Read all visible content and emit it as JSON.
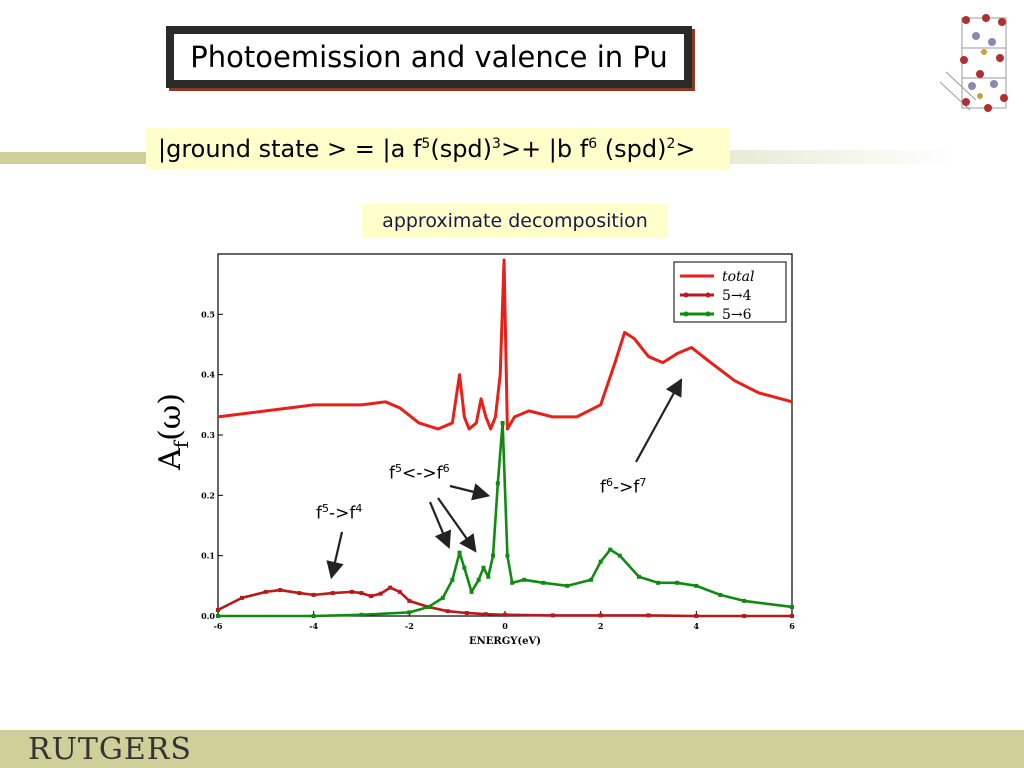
{
  "slide": {
    "title": "Photoemission and valence in Pu",
    "formula": {
      "p1": "|ground state > = |a f",
      "s1": "5",
      "p2": "(spd)",
      "s2": "3",
      "p3": ">+ |b f",
      "s3": "6",
      "p4": " (spd)",
      "s4": "2",
      "p5": ">"
    },
    "subtitle": "approximate decomposition",
    "yaxis_label": {
      "main": "A",
      "sub": "f",
      "rest": "(ω)"
    },
    "annotations": {
      "a1": {
        "base1": "f",
        "sup1": "5",
        "mid": "->f",
        "sup2": "4"
      },
      "a2": {
        "base1": "f",
        "sup1": "5",
        "mid": "<->f",
        "sup2": "6"
      },
      "a3": {
        "base1": "f",
        "sup1": "6",
        "mid": "->f",
        "sup2": "7"
      }
    },
    "logo": "RUTGERS",
    "colors": {
      "total": "#e8201a",
      "five_to_four": "#b81a1a",
      "five_to_six": "#118a11",
      "banner": "#ffffcc",
      "band": "#cfcf9a"
    }
  },
  "chart_data": {
    "type": "line",
    "xlabel": "ENERGY(eV)",
    "ylabel": "",
    "xlim": [
      -6,
      6
    ],
    "ylim": [
      0,
      0.6
    ],
    "xticks": [
      -6,
      -4,
      -2,
      0,
      2,
      4,
      6
    ],
    "yticks": [
      0.0,
      0.1,
      0.2,
      0.3,
      0.4,
      0.5
    ],
    "ytick_labels": [
      "0.0",
      "0.1",
      "0.2",
      "0.3",
      "0.4",
      "0.5"
    ],
    "legend_position": "top-right",
    "series": [
      {
        "name": "total",
        "color": "#e8201a",
        "marker": false,
        "x": [
          -6,
          -5,
          -4,
          -3,
          -2.5,
          -2.2,
          -1.8,
          -1.4,
          -1.1,
          -0.95,
          -0.85,
          -0.75,
          -0.6,
          -0.5,
          -0.4,
          -0.3,
          -0.2,
          -0.1,
          -0.02,
          0.05,
          0.2,
          0.5,
          1,
          1.5,
          2,
          2.3,
          2.5,
          2.7,
          3,
          3.3,
          3.6,
          3.9,
          4.3,
          4.8,
          5.3,
          6
        ],
        "y": [
          0.33,
          0.34,
          0.35,
          0.35,
          0.355,
          0.345,
          0.32,
          0.31,
          0.32,
          0.4,
          0.33,
          0.31,
          0.32,
          0.36,
          0.33,
          0.31,
          0.33,
          0.4,
          0.59,
          0.31,
          0.33,
          0.34,
          0.33,
          0.33,
          0.35,
          0.42,
          0.47,
          0.46,
          0.43,
          0.42,
          0.435,
          0.445,
          0.42,
          0.39,
          0.37,
          0.355
        ]
      },
      {
        "name": "5→4",
        "color": "#b81a1a",
        "marker": true,
        "x": [
          -6,
          -5.5,
          -5,
          -4.7,
          -4.3,
          -4,
          -3.6,
          -3.2,
          -3,
          -2.8,
          -2.6,
          -2.4,
          -2.2,
          -2,
          -1.6,
          -1.2,
          -0.8,
          -0.4,
          0,
          1,
          2,
          3,
          4,
          5,
          6
        ],
        "y": [
          0.01,
          0.03,
          0.04,
          0.043,
          0.038,
          0.035,
          0.038,
          0.04,
          0.038,
          0.033,
          0.037,
          0.047,
          0.04,
          0.025,
          0.015,
          0.008,
          0.005,
          0.003,
          0.002,
          0.001,
          0.001,
          0.001,
          0.0,
          0.0,
          0.0
        ]
      },
      {
        "name": "5→6",
        "color": "#118a11",
        "marker": true,
        "x": [
          -6,
          -4,
          -3,
          -2,
          -1.6,
          -1.3,
          -1.1,
          -0.95,
          -0.85,
          -0.7,
          -0.55,
          -0.45,
          -0.35,
          -0.25,
          -0.15,
          -0.05,
          0.05,
          0.15,
          0.4,
          0.8,
          1.3,
          1.8,
          2.0,
          2.2,
          2.4,
          2.8,
          3.2,
          3.6,
          4.0,
          4.5,
          5.0,
          6.0
        ],
        "y": [
          0.0,
          0.0,
          0.002,
          0.006,
          0.015,
          0.03,
          0.06,
          0.105,
          0.08,
          0.04,
          0.06,
          0.08,
          0.065,
          0.1,
          0.22,
          0.32,
          0.1,
          0.055,
          0.06,
          0.055,
          0.05,
          0.06,
          0.09,
          0.11,
          0.1,
          0.065,
          0.055,
          0.055,
          0.05,
          0.035,
          0.025,
          0.015
        ]
      }
    ]
  }
}
